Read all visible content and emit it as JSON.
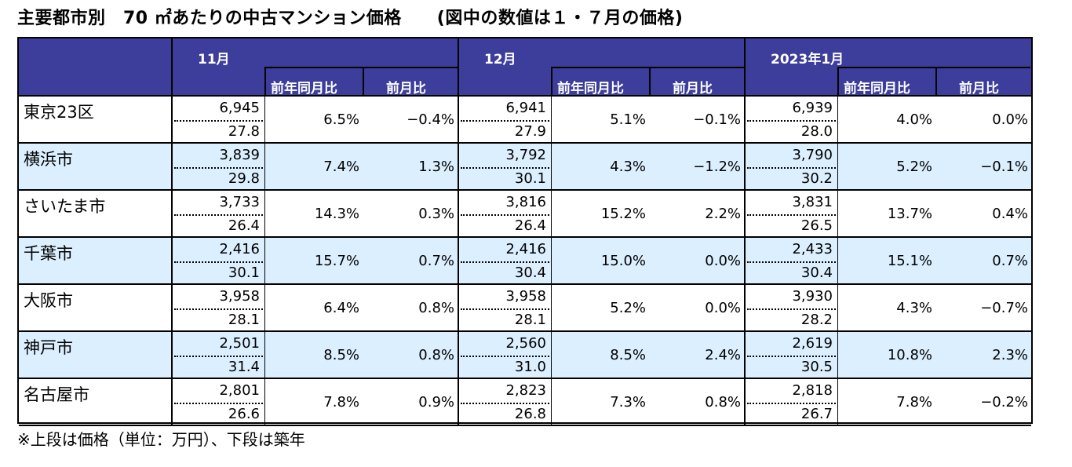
{
  "title": "主要都市別　70 ㎡あたりの中古マンション価格　　(図中の数値は１・７月の価格)",
  "periods": [
    {
      "label": "11月",
      "yoy_label": "前年同月比",
      "mom_label": "前月比"
    },
    {
      "label": "12月",
      "yoy_label": "前年同月比",
      "mom_label": "前月比"
    },
    {
      "label": "2023年1月",
      "yoy_label": "前年同月比",
      "mom_label": "前月比"
    }
  ],
  "rows": [
    {
      "city": "東京23区",
      "data": [
        {
          "price": "6,945",
          "age": "27.8",
          "yoy": "6.5%",
          "mom": "−0.4%"
        },
        {
          "price": "6,941",
          "age": "27.9",
          "yoy": "5.1%",
          "mom": "−0.1%"
        },
        {
          "price": "6,939",
          "age": "28.0",
          "yoy": "4.0%",
          "mom": "0.0%"
        }
      ]
    },
    {
      "city": "横浜市",
      "data": [
        {
          "price": "3,839",
          "age": "29.8",
          "yoy": "7.4%",
          "mom": "1.3%"
        },
        {
          "price": "3,792",
          "age": "30.1",
          "yoy": "4.3%",
          "mom": "−1.2%"
        },
        {
          "price": "3,790",
          "age": "30.2",
          "yoy": "5.2%",
          "mom": "−0.1%"
        }
      ]
    },
    {
      "city": "さいたま市",
      "data": [
        {
          "price": "3,733",
          "age": "26.4",
          "yoy": "14.3%",
          "mom": "0.3%"
        },
        {
          "price": "3,816",
          "age": "26.4",
          "yoy": "15.2%",
          "mom": "2.2%"
        },
        {
          "price": "3,831",
          "age": "26.5",
          "yoy": "13.7%",
          "mom": "0.4%"
        }
      ]
    },
    {
      "city": "千葉市",
      "data": [
        {
          "price": "2,416",
          "age": "30.1",
          "yoy": "15.7%",
          "mom": "0.7%"
        },
        {
          "price": "2,416",
          "age": "30.4",
          "yoy": "15.0%",
          "mom": "0.0%"
        },
        {
          "price": "2,433",
          "age": "30.4",
          "yoy": "15.1%",
          "mom": "0.7%"
        }
      ]
    },
    {
      "city": "大阪市",
      "data": [
        {
          "price": "3,958",
          "age": "28.1",
          "yoy": "6.4%",
          "mom": "0.8%"
        },
        {
          "price": "3,958",
          "age": "28.1",
          "yoy": "5.2%",
          "mom": "0.0%"
        },
        {
          "price": "3,930",
          "age": "28.2",
          "yoy": "4.3%",
          "mom": "−0.7%"
        }
      ]
    },
    {
      "city": "神戸市",
      "data": [
        {
          "price": "2,501",
          "age": "31.4",
          "yoy": "8.5%",
          "mom": "0.8%"
        },
        {
          "price": "2,560",
          "age": "31.0",
          "yoy": "8.5%",
          "mom": "2.4%"
        },
        {
          "price": "2,619",
          "age": "30.5",
          "yoy": "10.8%",
          "mom": "2.3%"
        }
      ]
    },
    {
      "city": "名古屋市",
      "data": [
        {
          "price": "2,801",
          "age": "26.6",
          "yoy": "7.8%",
          "mom": "0.9%"
        },
        {
          "price": "2,823",
          "age": "26.8",
          "yoy": "7.3%",
          "mom": "0.8%"
        },
        {
          "price": "2,818",
          "age": "26.7",
          "yoy": "7.8%",
          "mom": "−0.2%"
        }
      ]
    }
  ],
  "note": "※上段は価格（単位：万円）、下段は築年"
}
